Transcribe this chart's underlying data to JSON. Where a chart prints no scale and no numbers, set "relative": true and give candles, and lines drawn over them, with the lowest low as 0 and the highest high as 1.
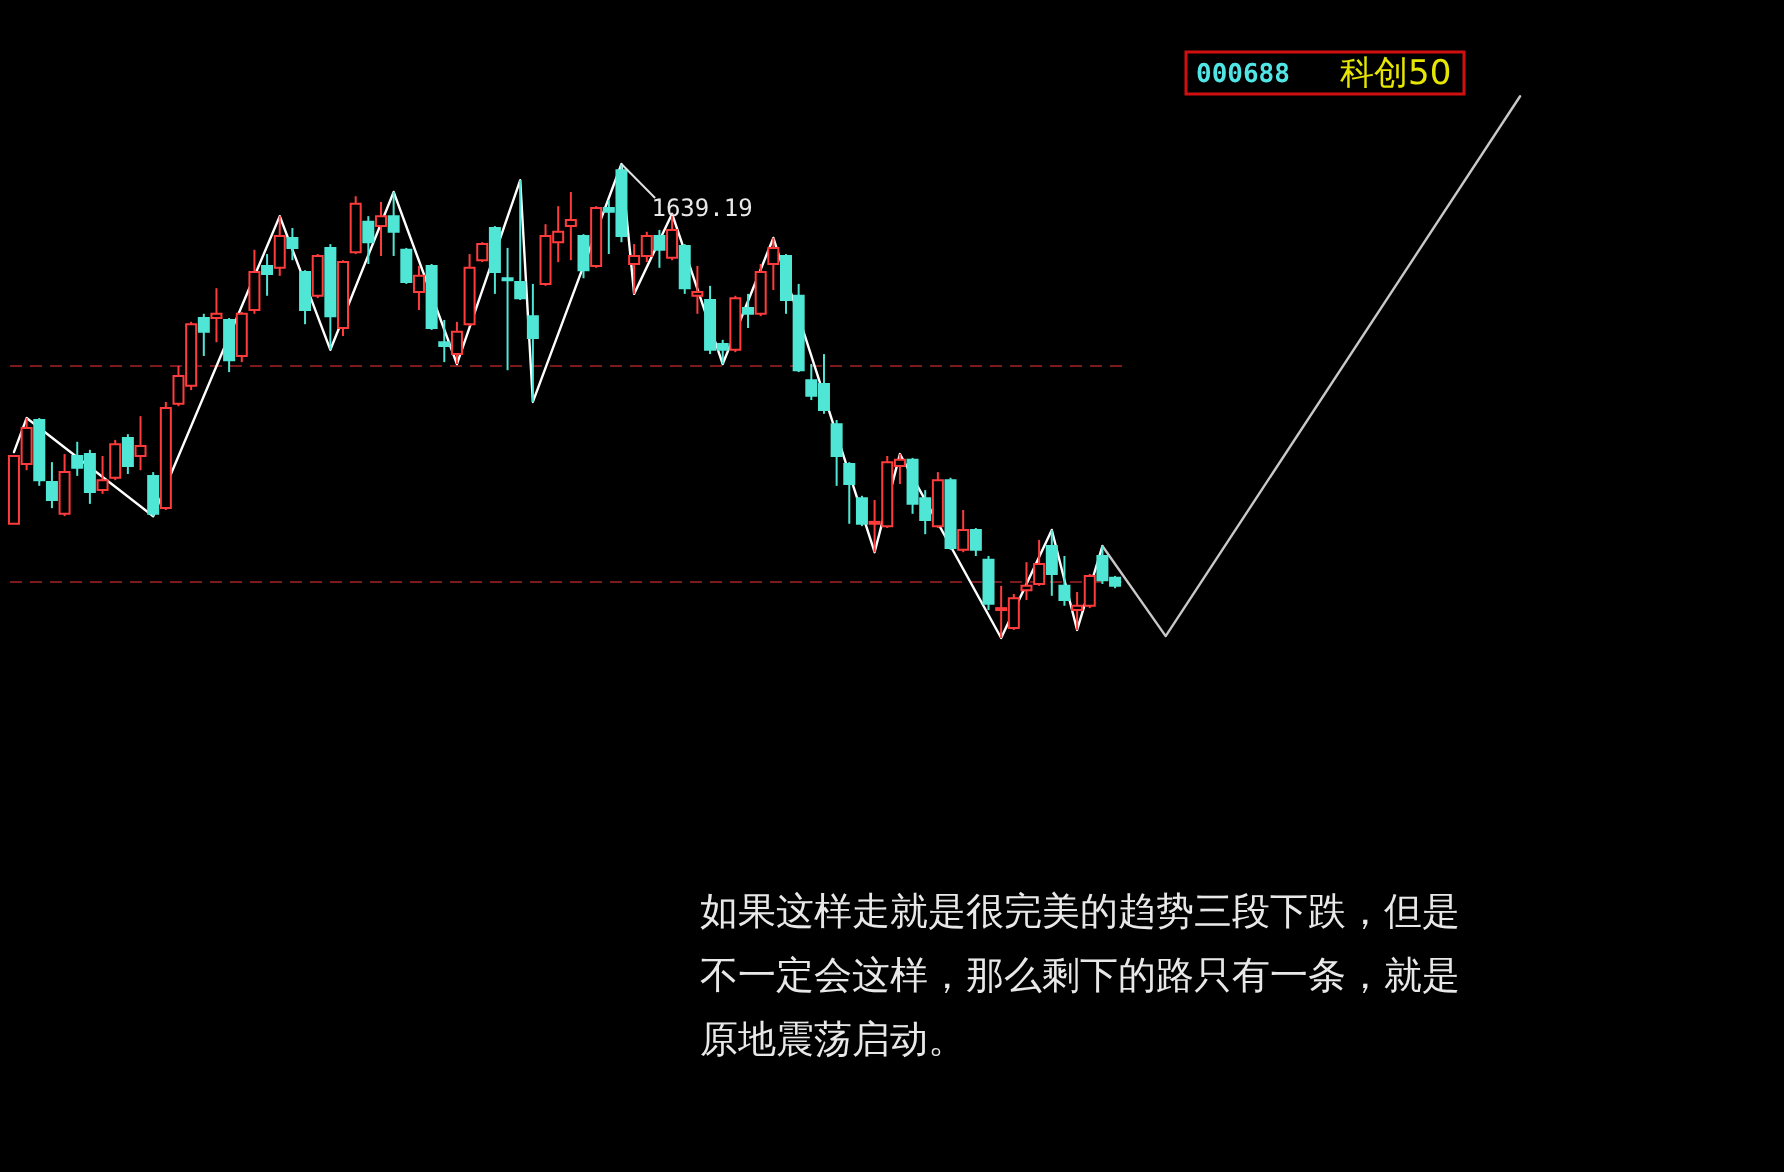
{
  "chart_data": {
    "type": "candlestick",
    "title": "000688",
    "subtitle": "科创50",
    "relative": true,
    "categories": [
      null,
      null,
      null,
      null,
      null,
      null,
      null,
      null,
      null,
      null,
      null,
      null,
      null,
      null,
      null,
      null,
      null,
      null,
      null,
      null,
      null,
      null,
      null,
      null,
      null,
      null,
      null,
      null,
      null,
      null,
      null,
      null,
      null,
      null,
      null,
      null,
      null,
      null,
      null,
      null,
      null,
      null,
      null,
      null,
      null,
      null,
      null,
      null,
      null,
      null,
      null,
      null,
      null,
      null,
      null,
      null,
      null,
      null,
      null,
      null,
      null,
      null,
      null,
      null,
      null,
      null,
      null,
      null,
      null,
      null,
      null,
      null,
      null,
      null,
      null,
      null,
      null,
      null,
      null,
      null,
      null,
      null,
      null,
      null,
      null,
      null,
      null,
      null,
      null,
      null,
      null,
      null,
      null,
      null,
      null,
      null,
      null,
      null,
      null,
      null,
      null,
      null,
      null,
      null,
      null,
      null,
      null,
      null,
      null,
      null,
      null,
      null,
      null,
      null,
      null,
      null,
      null,
      null,
      null,
      null
    ],
    "ohlc": [
      [
        0.241,
        0.384,
        0.241,
        0.384
      ],
      [
        0.367,
        0.464,
        0.354,
        0.443
      ],
      [
        0.46,
        0.464,
        0.321,
        0.333
      ],
      [
        0.329,
        0.371,
        0.274,
        0.291
      ],
      [
        0.262,
        0.388,
        0.257,
        0.35
      ],
      [
        0.384,
        0.414,
        0.342,
        0.359
      ],
      [
        0.388,
        0.397,
        0.283,
        0.308
      ],
      [
        0.312,
        0.384,
        0.304,
        0.333
      ],
      [
        0.338,
        0.418,
        0.333,
        0.409
      ],
      [
        0.422,
        0.43,
        0.346,
        0.363
      ],
      [
        0.384,
        0.468,
        0.354,
        0.405
      ],
      [
        0.342,
        0.35,
        0.257,
        0.262
      ],
      [
        0.274,
        0.498,
        0.27,
        0.485
      ],
      [
        0.494,
        0.574,
        0.489,
        0.553
      ],
      [
        0.532,
        0.667,
        0.523,
        0.662
      ],
      [
        0.675,
        0.684,
        0.595,
        0.646
      ],
      [
        0.675,
        0.738,
        0.624,
        0.684
      ],
      [
        0.671,
        0.675,
        0.561,
        0.586
      ],
      [
        0.595,
        0.688,
        0.582,
        0.684
      ],
      [
        0.692,
        0.819,
        0.684,
        0.772
      ],
      [
        0.785,
        0.81,
        0.722,
        0.768
      ],
      [
        0.781,
        0.89,
        0.764,
        0.848
      ],
      [
        0.844,
        0.865,
        0.797,
        0.823
      ],
      [
        0.772,
        0.776,
        0.662,
        0.692
      ],
      [
        0.722,
        0.81,
        0.717,
        0.806
      ],
      [
        0.823,
        0.831,
        0.608,
        0.679
      ],
      [
        0.654,
        0.797,
        0.637,
        0.793
      ],
      [
        0.814,
        0.932,
        0.81,
        0.916
      ],
      [
        0.878,
        0.89,
        0.789,
        0.835
      ],
      [
        0.869,
        0.92,
        0.806,
        0.89
      ],
      [
        0.89,
        0.941,
        0.806,
        0.857
      ],
      [
        0.819,
        0.823,
        0.747,
        0.751
      ],
      [
        0.73,
        0.785,
        0.692,
        0.764
      ],
      [
        0.785,
        0.789,
        0.65,
        0.654
      ],
      [
        0.624,
        0.671,
        0.582,
        0.616
      ],
      [
        0.599,
        0.667,
        0.578,
        0.646
      ],
      [
        0.662,
        0.81,
        0.658,
        0.781
      ],
      [
        0.797,
        0.835,
        0.793,
        0.831
      ],
      [
        0.865,
        0.869,
        0.726,
        0.772
      ],
      [
        0.759,
        0.823,
        0.565,
        0.755
      ],
      [
        0.751,
        0.966,
        0.713,
        0.717
      ],
      [
        0.679,
        0.747,
        0.498,
        0.633
      ],
      [
        0.747,
        0.873,
        0.743,
        0.848
      ],
      [
        0.835,
        0.911,
        0.793,
        0.857
      ],
      [
        0.869,
        0.941,
        0.797,
        0.882
      ],
      [
        0.848,
        0.852,
        0.759,
        0.776
      ],
      [
        0.785,
        0.911,
        0.781,
        0.907
      ],
      [
        0.907,
        0.924,
        0.81,
        0.899
      ],
      [
        0.987,
        1,
        0.835,
        0.848
      ],
      [
        0.789,
        0.831,
        0.726,
        0.806
      ],
      [
        0.806,
        0.857,
        0.793,
        0.848
      ],
      [
        0.848,
        0.861,
        0.781,
        0.819
      ],
      [
        0.802,
        0.895,
        0.797,
        0.861
      ],
      [
        0.827,
        0.831,
        0.726,
        0.738
      ],
      [
        0.722,
        0.785,
        0.684,
        0.73
      ],
      [
        0.713,
        0.743,
        0.599,
        0.608
      ],
      [
        0.62,
        0.629,
        0.578,
        0.608
      ],
      [
        0.608,
        0.722,
        0.603,
        0.717
      ],
      [
        0.696,
        0.726,
        0.654,
        0.684
      ],
      [
        0.684,
        0.789,
        0.679,
        0.772
      ],
      [
        0.789,
        0.844,
        0.734,
        0.823
      ],
      [
        0.806,
        0.81,
        0.684,
        0.713
      ],
      [
        0.722,
        0.747,
        0.561,
        0.565
      ],
      [
        0.544,
        0.578,
        0.502,
        0.511
      ],
      [
        0.536,
        0.599,
        0.473,
        0.481
      ],
      [
        0.451,
        0.46,
        0.321,
        0.384
      ],
      [
        0.367,
        0.371,
        0.241,
        0.325
      ],
      [
        0.295,
        0.3,
        0.236,
        0.241
      ],
      [
        0.241,
        0.291,
        0.181,
        0.245
      ],
      [
        0.236,
        0.384,
        0.232,
        0.371
      ],
      [
        0.363,
        0.388,
        0.325,
        0.376
      ],
      [
        0.376,
        0.38,
        0.262,
        0.283
      ],
      [
        0.295,
        0.312,
        0.219,
        0.249
      ],
      [
        0.236,
        0.35,
        0.232,
        0.333
      ],
      [
        0.333,
        0.338,
        0.186,
        0.19
      ],
      [
        0.186,
        0.27,
        0.181,
        0.228
      ],
      [
        0.228,
        0.232,
        0.173,
        0.186
      ],
      [
        0.165,
        0.173,
        0.059,
        0.072
      ],
      [
        0.059,
        0.11,
        0,
        0.063
      ],
      [
        0.021,
        0.093,
        0.017,
        0.084
      ],
      [
        0.101,
        0.16,
        0.08,
        0.11
      ],
      [
        0.114,
        0.207,
        0.11,
        0.156
      ],
      [
        0.194,
        0.228,
        0.089,
        0.135
      ],
      [
        0.11,
        0.173,
        0.068,
        0.08
      ],
      [
        0.059,
        0.097,
        0.017,
        0.068
      ],
      [
        0.068,
        0.135,
        0.063,
        0.131
      ],
      [
        0.173,
        0.194,
        0.114,
        0.122
      ],
      [
        0.127,
        0.131,
        0.105,
        0.11
      ],
      null,
      null,
      null,
      null,
      null,
      null,
      null,
      null,
      null,
      null,
      null,
      null,
      null,
      null,
      null,
      null,
      null,
      null,
      null,
      null,
      null,
      null,
      null,
      null,
      null,
      null,
      null,
      null,
      null,
      null,
      null,
      null
    ],
    "colors": [
      "#ff3c3c",
      "#ff3c3c",
      "#50e6d6",
      "#50e6d6",
      "#ff3c3c",
      "#50e6d6",
      "#50e6d6",
      "#ff3c3c",
      "#ff3c3c",
      "#50e6d6",
      "#ff3c3c",
      "#50e6d6",
      "#ff3c3c",
      "#ff3c3c",
      "#ff3c3c",
      "#50e6d6",
      "#ff3c3c",
      "#50e6d6",
      "#ff3c3c",
      "#ff3c3c",
      "#50e6d6",
      "#ff3c3c",
      "#50e6d6",
      "#50e6d6",
      "#ff3c3c",
      "#50e6d6",
      "#ff3c3c",
      "#ff3c3c",
      "#50e6d6",
      "#ff3c3c",
      "#50e6d6",
      "#50e6d6",
      "#ff3c3c",
      "#50e6d6",
      "#50e6d6",
      "#ff3c3c",
      "#ff3c3c",
      "#ff3c3c",
      "#50e6d6",
      "#50e6d6",
      "#50e6d6",
      "#50e6d6",
      "#ff3c3c",
      "#ff3c3c",
      "#ff3c3c",
      "#50e6d6",
      "#ff3c3c",
      "#50e6d6",
      "#50e6d6",
      "#ff3c3c",
      "#ff3c3c",
      "#50e6d6",
      "#ff3c3c",
      "#50e6d6",
      "#ff3c3c",
      "#50e6d6",
      "#50e6d6",
      "#ff3c3c",
      "#50e6d6",
      "#ff3c3c",
      "#ff3c3c",
      "#50e6d6",
      "#50e6d6",
      "#50e6d6",
      "#50e6d6",
      "#50e6d6",
      "#50e6d6",
      "#50e6d6",
      "#ff3c3c",
      "#ff3c3c",
      "#ff3c3c",
      "#50e6d6",
      "#50e6d6",
      "#ff3c3c",
      "#50e6d6",
      "#ff3c3c",
      "#50e6d6",
      "#50e6d6",
      "#ff3c3c",
      "#ff3c3c",
      "#ff3c3c",
      "#ff3c3c",
      "#50e6d6",
      "#50e6d6",
      "#ff3c3c",
      "#ff3c3c",
      "#50e6d6",
      "#50e6d6",
      null,
      null,
      null,
      null,
      null,
      null,
      null,
      null,
      null,
      null,
      null,
      null,
      null,
      null,
      null,
      null,
      null,
      null,
      null,
      null,
      null,
      null,
      null,
      null,
      null,
      null,
      null,
      null,
      null,
      null,
      null,
      null
    ],
    "series": [
      {
        "type": "line",
        "color": "#ffffff",
        "values": [
          0.392,
          0.464,
          null,
          null,
          null,
          null,
          null,
          null,
          null,
          null,
          null,
          0.257,
          null,
          null,
          null,
          null,
          null,
          null,
          null,
          null,
          null,
          0.89,
          null,
          null,
          null,
          0.608,
          null,
          null,
          null,
          null,
          0.941,
          null,
          null,
          null,
          null,
          0.578,
          null,
          null,
          null,
          null,
          0.966,
          0.498,
          null,
          null,
          null,
          null,
          null,
          null,
          1,
          0.726,
          null,
          null,
          0.895,
          null,
          null,
          null,
          0.578,
          null,
          null,
          null,
          0.844,
          null,
          null,
          null,
          null,
          null,
          null,
          null,
          0.181,
          null,
          0.388,
          null,
          null,
          null,
          null,
          null,
          null,
          null,
          0,
          null,
          null,
          null,
          0.228,
          null,
          0.017,
          null,
          0.194,
          null,
          null,
          null,
          null,
          null,
          null,
          null,
          null,
          null,
          null,
          null,
          null,
          null,
          null,
          null,
          null,
          null,
          null,
          null,
          null,
          null,
          null,
          null,
          null,
          null,
          null,
          null,
          null,
          null,
          null,
          null,
          null,
          null
        ]
      },
      {
        "type": "line",
        "color": "#c8c8c8",
        "values": [
          null,
          null,
          null,
          null,
          null,
          null,
          null,
          null,
          null,
          null,
          null,
          null,
          null,
          null,
          null,
          null,
          null,
          null,
          null,
          null,
          null,
          null,
          null,
          null,
          null,
          null,
          null,
          null,
          null,
          null,
          null,
          null,
          null,
          null,
          null,
          null,
          null,
          null,
          null,
          null,
          null,
          null,
          null,
          null,
          null,
          null,
          null,
          null,
          null,
          null,
          null,
          null,
          null,
          null,
          null,
          null,
          null,
          null,
          null,
          null,
          null,
          null,
          null,
          null,
          null,
          null,
          null,
          null,
          null,
          null,
          null,
          null,
          null,
          null,
          null,
          null,
          null,
          null,
          null,
          null,
          null,
          null,
          null,
          null,
          null,
          null,
          0.194,
          null,
          null,
          null,
          null,
          0.004,
          null,
          null,
          null,
          null,
          null,
          null,
          null,
          null,
          null,
          null,
          null,
          null,
          null,
          null,
          null,
          null,
          null,
          null,
          null,
          null,
          null,
          null,
          null,
          null,
          null,
          null,
          null,
          1.143
        ]
      }
    ],
    "ref_lines": [
      {
        "axis": "y",
        "value": 0.574,
        "color": "#7a1a1a",
        "line_style": "dashed"
      },
      {
        "axis": "y",
        "value": 0.118,
        "color": "#7a1a1a",
        "line_style": "dashed"
      }
    ],
    "annotations": [
      "如果这样走就是很完美的趋势三段下跌，但是不一定会这样，那么剩下的路只有一条，就是原地震荡启动。",
      "1639.19"
    ]
  }
}
